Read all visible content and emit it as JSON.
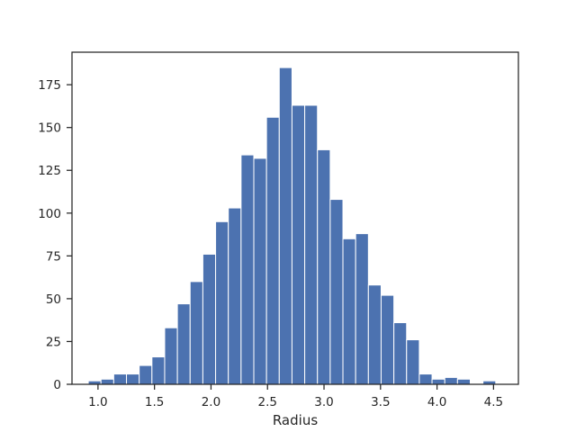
{
  "chart_data": {
    "type": "bar",
    "title": "",
    "xlabel": "Radius",
    "ylabel": "",
    "xlim": [
      0.77,
      4.72
    ],
    "ylim": [
      0,
      194
    ],
    "grid": false,
    "bar_color": "#4c72b0",
    "bin_edges": [
      0.914,
      1.0267,
      1.1393,
      1.252,
      1.3647,
      1.4773,
      1.59,
      1.7027,
      1.8153,
      1.928,
      2.0407,
      2.1533,
      2.266,
      2.3787,
      2.4913,
      2.604,
      2.7167,
      2.8293,
      2.942,
      3.0547,
      3.1673,
      3.28,
      3.3927,
      3.5053,
      3.618,
      3.7307,
      3.8433,
      3.956,
      4.0687,
      4.1813,
      4.294,
      4.4067,
      4.5193
    ],
    "values": [
      2,
      3,
      6,
      6,
      11,
      16,
      33,
      47,
      60,
      76,
      95,
      103,
      134,
      132,
      156,
      185,
      163,
      163,
      137,
      108,
      85,
      88,
      58,
      52,
      36,
      26,
      6,
      3,
      4,
      3,
      0,
      2
    ],
    "xticks": [
      "1.0",
      "1.5",
      "2.0",
      "2.5",
      "3.0",
      "3.5",
      "4.0",
      "4.5"
    ],
    "yticks": [
      "0",
      "25",
      "50",
      "75",
      "100",
      "125",
      "150",
      "175"
    ]
  }
}
